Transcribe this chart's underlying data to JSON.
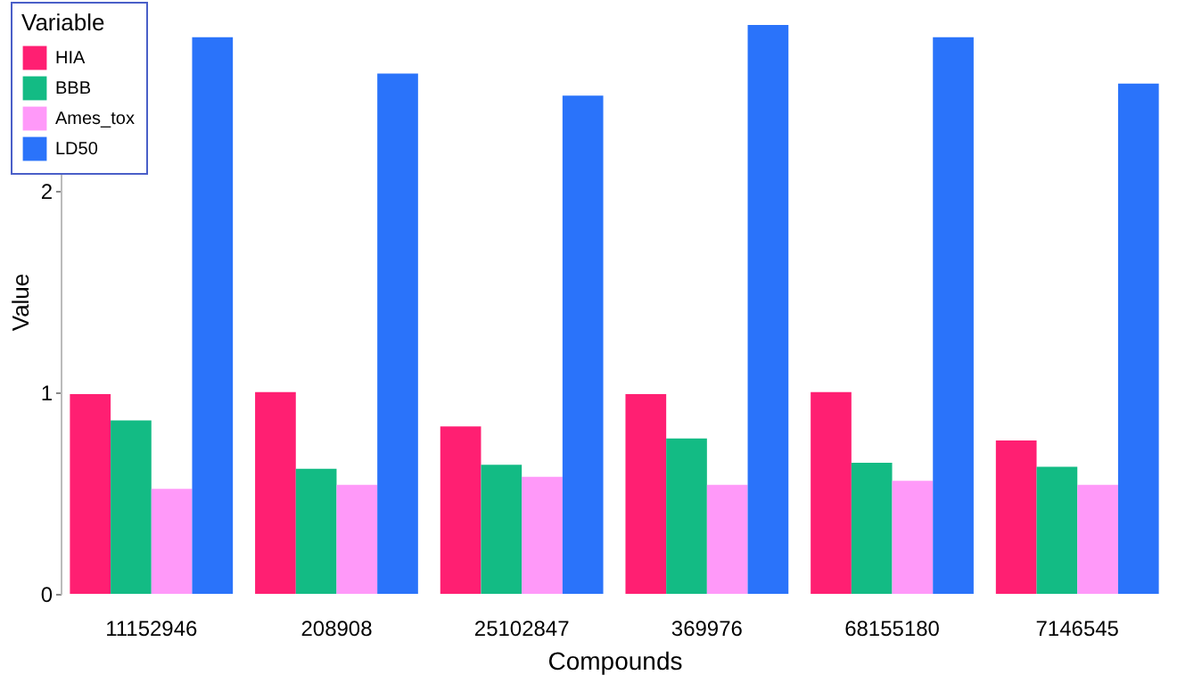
{
  "chart_data": {
    "type": "bar",
    "xlabel": "Compounds",
    "ylabel": "Value",
    "legend_title": "Variable",
    "legend": "top left",
    "grid": false,
    "categories": [
      "11152946",
      "208908",
      "25102847",
      "369976",
      "68155180",
      "7146545"
    ],
    "ylim": [
      0,
      2.9
    ],
    "yticks": [
      0,
      1,
      2
    ],
    "series": [
      {
        "name": "HIA",
        "color": "#ff1f72",
        "values": [
          0.99,
          1.0,
          0.83,
          0.99,
          1.0,
          0.76
        ]
      },
      {
        "name": "BBB",
        "color": "#13bb84",
        "values": [
          0.86,
          0.62,
          0.64,
          0.77,
          0.65,
          0.63
        ]
      },
      {
        "name": "Ames_tox",
        "color": "#ff99f9",
        "values": [
          0.52,
          0.54,
          0.58,
          0.54,
          0.56,
          0.54
        ]
      },
      {
        "name": "LD50",
        "color": "#2a73fa",
        "values": [
          2.76,
          2.58,
          2.47,
          2.82,
          2.76,
          2.53
        ]
      }
    ]
  }
}
